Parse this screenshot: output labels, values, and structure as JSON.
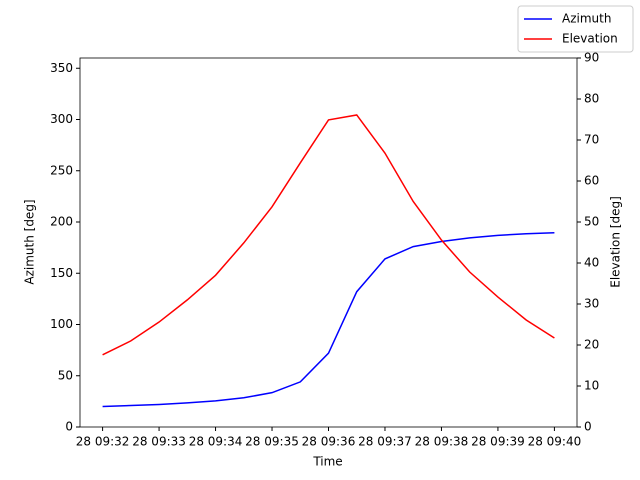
{
  "chart_data": {
    "type": "line",
    "x_label": "Time",
    "y_label": "Azimuth [deg]",
    "y2_label": "Elevation [deg]",
    "x": [
      32,
      32.5,
      33,
      33.5,
      34,
      34.5,
      35,
      35.5,
      36,
      36.5,
      37,
      37.5,
      38,
      38.5,
      39,
      39.5,
      40
    ],
    "xlim": [
      31.6,
      40.4
    ],
    "xticks": [
      {
        "value": 32,
        "label": "28 09:32"
      },
      {
        "value": 33,
        "label": "28 09:33"
      },
      {
        "value": 34,
        "label": "28 09:34"
      },
      {
        "value": 35,
        "label": "28 09:35"
      },
      {
        "value": 36,
        "label": "28 09:36"
      },
      {
        "value": 37,
        "label": "28 09:37"
      },
      {
        "value": 38,
        "label": "28 09:38"
      },
      {
        "value": 39,
        "label": "28 09:39"
      },
      {
        "value": 40,
        "label": "28 09:40"
      }
    ],
    "ylim": [
      0,
      360
    ],
    "yticks": [
      0,
      50,
      100,
      150,
      200,
      250,
      300,
      350
    ],
    "y2lim": [
      0,
      90
    ],
    "y2ticks": [
      0,
      10,
      20,
      30,
      40,
      50,
      60,
      70,
      80,
      90
    ],
    "legend": "upper right",
    "series": [
      {
        "name": "Azimuth",
        "color": "#0000ff",
        "axis": "y",
        "values": [
          20,
          21,
          22,
          23.5,
          25.5,
          28.5,
          33.5,
          44,
          72,
          132,
          164,
          176,
          181,
          184.5,
          187,
          188.5,
          189.5
        ]
      },
      {
        "name": "Elevation",
        "color": "#ff0000",
        "axis": "y2",
        "values": [
          17.6,
          21,
          25.6,
          31,
          37,
          44.9,
          53.7,
          64.4,
          74.9,
          76.1,
          66.8,
          55,
          45.6,
          37.8,
          31.7,
          26.1,
          21.7
        ]
      }
    ]
  }
}
